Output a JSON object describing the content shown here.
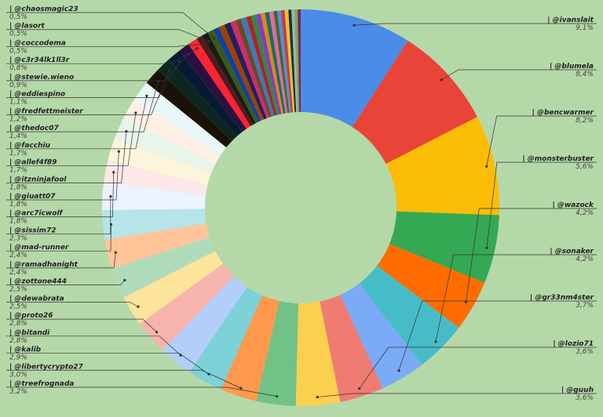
{
  "chart_data": {
    "type": "pie",
    "title": "",
    "colors": {
      "background": "#b5d8a8",
      "leader_line": "#333333"
    },
    "slices": [
      {
        "label": "@ivanslait",
        "value": 9.1,
        "display": "9,1%",
        "color": "#4a8ce8"
      },
      {
        "label": "@blumela",
        "value": 8.4,
        "display": "8,4%",
        "color": "#e84437"
      },
      {
        "label": "@bencwarmer",
        "value": 8.2,
        "display": "8,2%",
        "color": "#fbbc05"
      },
      {
        "label": "@monsterbuster",
        "value": 5.6,
        "display": "5,6%",
        "color": "#34a853"
      },
      {
        "label": "@wazock",
        "value": 4.2,
        "display": "4,2%",
        "color": "#ff6d01"
      },
      {
        "label": "@sonaker",
        "value": 4.2,
        "display": "4,2%",
        "color": "#46bdc6"
      },
      {
        "label": "@gr33nm4ster",
        "value": 3.7,
        "display": "3,7%",
        "color": "#7baaf7"
      },
      {
        "label": "@lozio71",
        "value": 3.6,
        "display": "3,6%",
        "color": "#f07b72"
      },
      {
        "label": "@guuh",
        "value": 3.6,
        "display": "3,6%",
        "color": "#fcd04f"
      },
      {
        "label": "@treefrognada",
        "value": 3.2,
        "display": "3,2%",
        "color": "#71c287"
      },
      {
        "label": "@libertycrypto27",
        "value": 3.0,
        "display": "3,0%",
        "color": "#ff994d"
      },
      {
        "label": "@kalib",
        "value": 2.9,
        "display": "2,9%",
        "color": "#7ed1d7"
      },
      {
        "label": "@bitandi",
        "value": 2.8,
        "display": "2,8%",
        "color": "#b3cefb"
      },
      {
        "label": "@proto26",
        "value": 2.8,
        "display": "2,8%",
        "color": "#f7b4ae"
      },
      {
        "label": "@dewabrata",
        "value": 2.5,
        "display": "2,5%",
        "color": "#fde49b"
      },
      {
        "label": "@zottone444",
        "value": 2.5,
        "display": "2,5%",
        "color": "#aedcba"
      },
      {
        "label": "@ramadhanight",
        "value": 2.4,
        "display": "2,4%",
        "color": "#ffc599"
      },
      {
        "label": "@mad-runner",
        "value": 2.4,
        "display": "2,4%",
        "color": "#b5e5e8"
      },
      {
        "label": "@sissim72",
        "value": 2.3,
        "display": "2,3%",
        "color": "#ecf3fe"
      },
      {
        "label": "@arc7icwolf",
        "value": 1.8,
        "display": "1,8%",
        "color": "#fde8e7"
      },
      {
        "label": "@giuatt07",
        "value": 1.8,
        "display": "1,8%",
        "color": "#fef6dc"
      },
      {
        "label": "@itzninjafool",
        "value": 1.8,
        "display": "1,8%",
        "color": "#e9f5eb"
      },
      {
        "label": "@allef4f89",
        "value": 1.7,
        "display": "1,7%",
        "color": "#fff0e6"
      },
      {
        "label": "@facchiu",
        "value": 1.7,
        "display": "1,7%",
        "color": "#eaf7f8"
      },
      {
        "label": "@thedoc07",
        "value": 1.4,
        "display": "1,4%",
        "color": "#1a1208"
      },
      {
        "label": "@fredfettmeister",
        "value": 1.2,
        "display": "1,2%",
        "color": "#0d2620"
      },
      {
        "label": "@eddiespino",
        "value": 1.1,
        "display": "1,1%",
        "color": "#061a33"
      },
      {
        "label": "@stewie.wieno",
        "value": 0.9,
        "display": "0,9%",
        "color": "#2a1040"
      },
      {
        "label": "@c3r34lk1ll3r",
        "value": 0.8,
        "display": "0,8%",
        "color": "#ff2233"
      },
      {
        "label": "@coccodema",
        "value": 0.5,
        "display": "0,5%",
        "color": "#551a1a"
      },
      {
        "label": "@lasort",
        "value": 0.5,
        "display": "0,5%",
        "color": "#1a1a1a"
      },
      {
        "label": "@chaosmagic23",
        "value": 0.5,
        "display": "0,5%",
        "color": "#3a5a14"
      }
    ],
    "other_slices": [
      {
        "value": 0.5,
        "color": "#1040a0"
      },
      {
        "value": 0.5,
        "color": "#a04000"
      },
      {
        "value": 0.5,
        "color": "#202060"
      },
      {
        "value": 0.45,
        "color": "#d02c6a"
      },
      {
        "value": 0.45,
        "color": "#6a4a2a"
      },
      {
        "value": 0.45,
        "color": "#3c7ab8"
      },
      {
        "value": 0.4,
        "color": "#b02222"
      },
      {
        "value": 0.4,
        "color": "#2a8a4a"
      },
      {
        "value": 0.4,
        "color": "#8a3ab8"
      },
      {
        "value": 0.35,
        "color": "#d88a1a"
      },
      {
        "value": 0.35,
        "color": "#1a6a6a"
      },
      {
        "value": 0.35,
        "color": "#e06aa0"
      },
      {
        "value": 0.3,
        "color": "#406a20"
      },
      {
        "value": 0.3,
        "color": "#5a8ae8"
      },
      {
        "value": 0.3,
        "color": "#c04040"
      },
      {
        "value": 0.3,
        "color": "#e8c03a"
      },
      {
        "value": 0.25,
        "color": "#2a2a2a"
      },
      {
        "value": 0.25,
        "color": "#7ac0d0"
      },
      {
        "value": 0.25,
        "color": "#a0a030"
      },
      {
        "value": 0.25,
        "color": "#6a2a6a"
      }
    ]
  }
}
